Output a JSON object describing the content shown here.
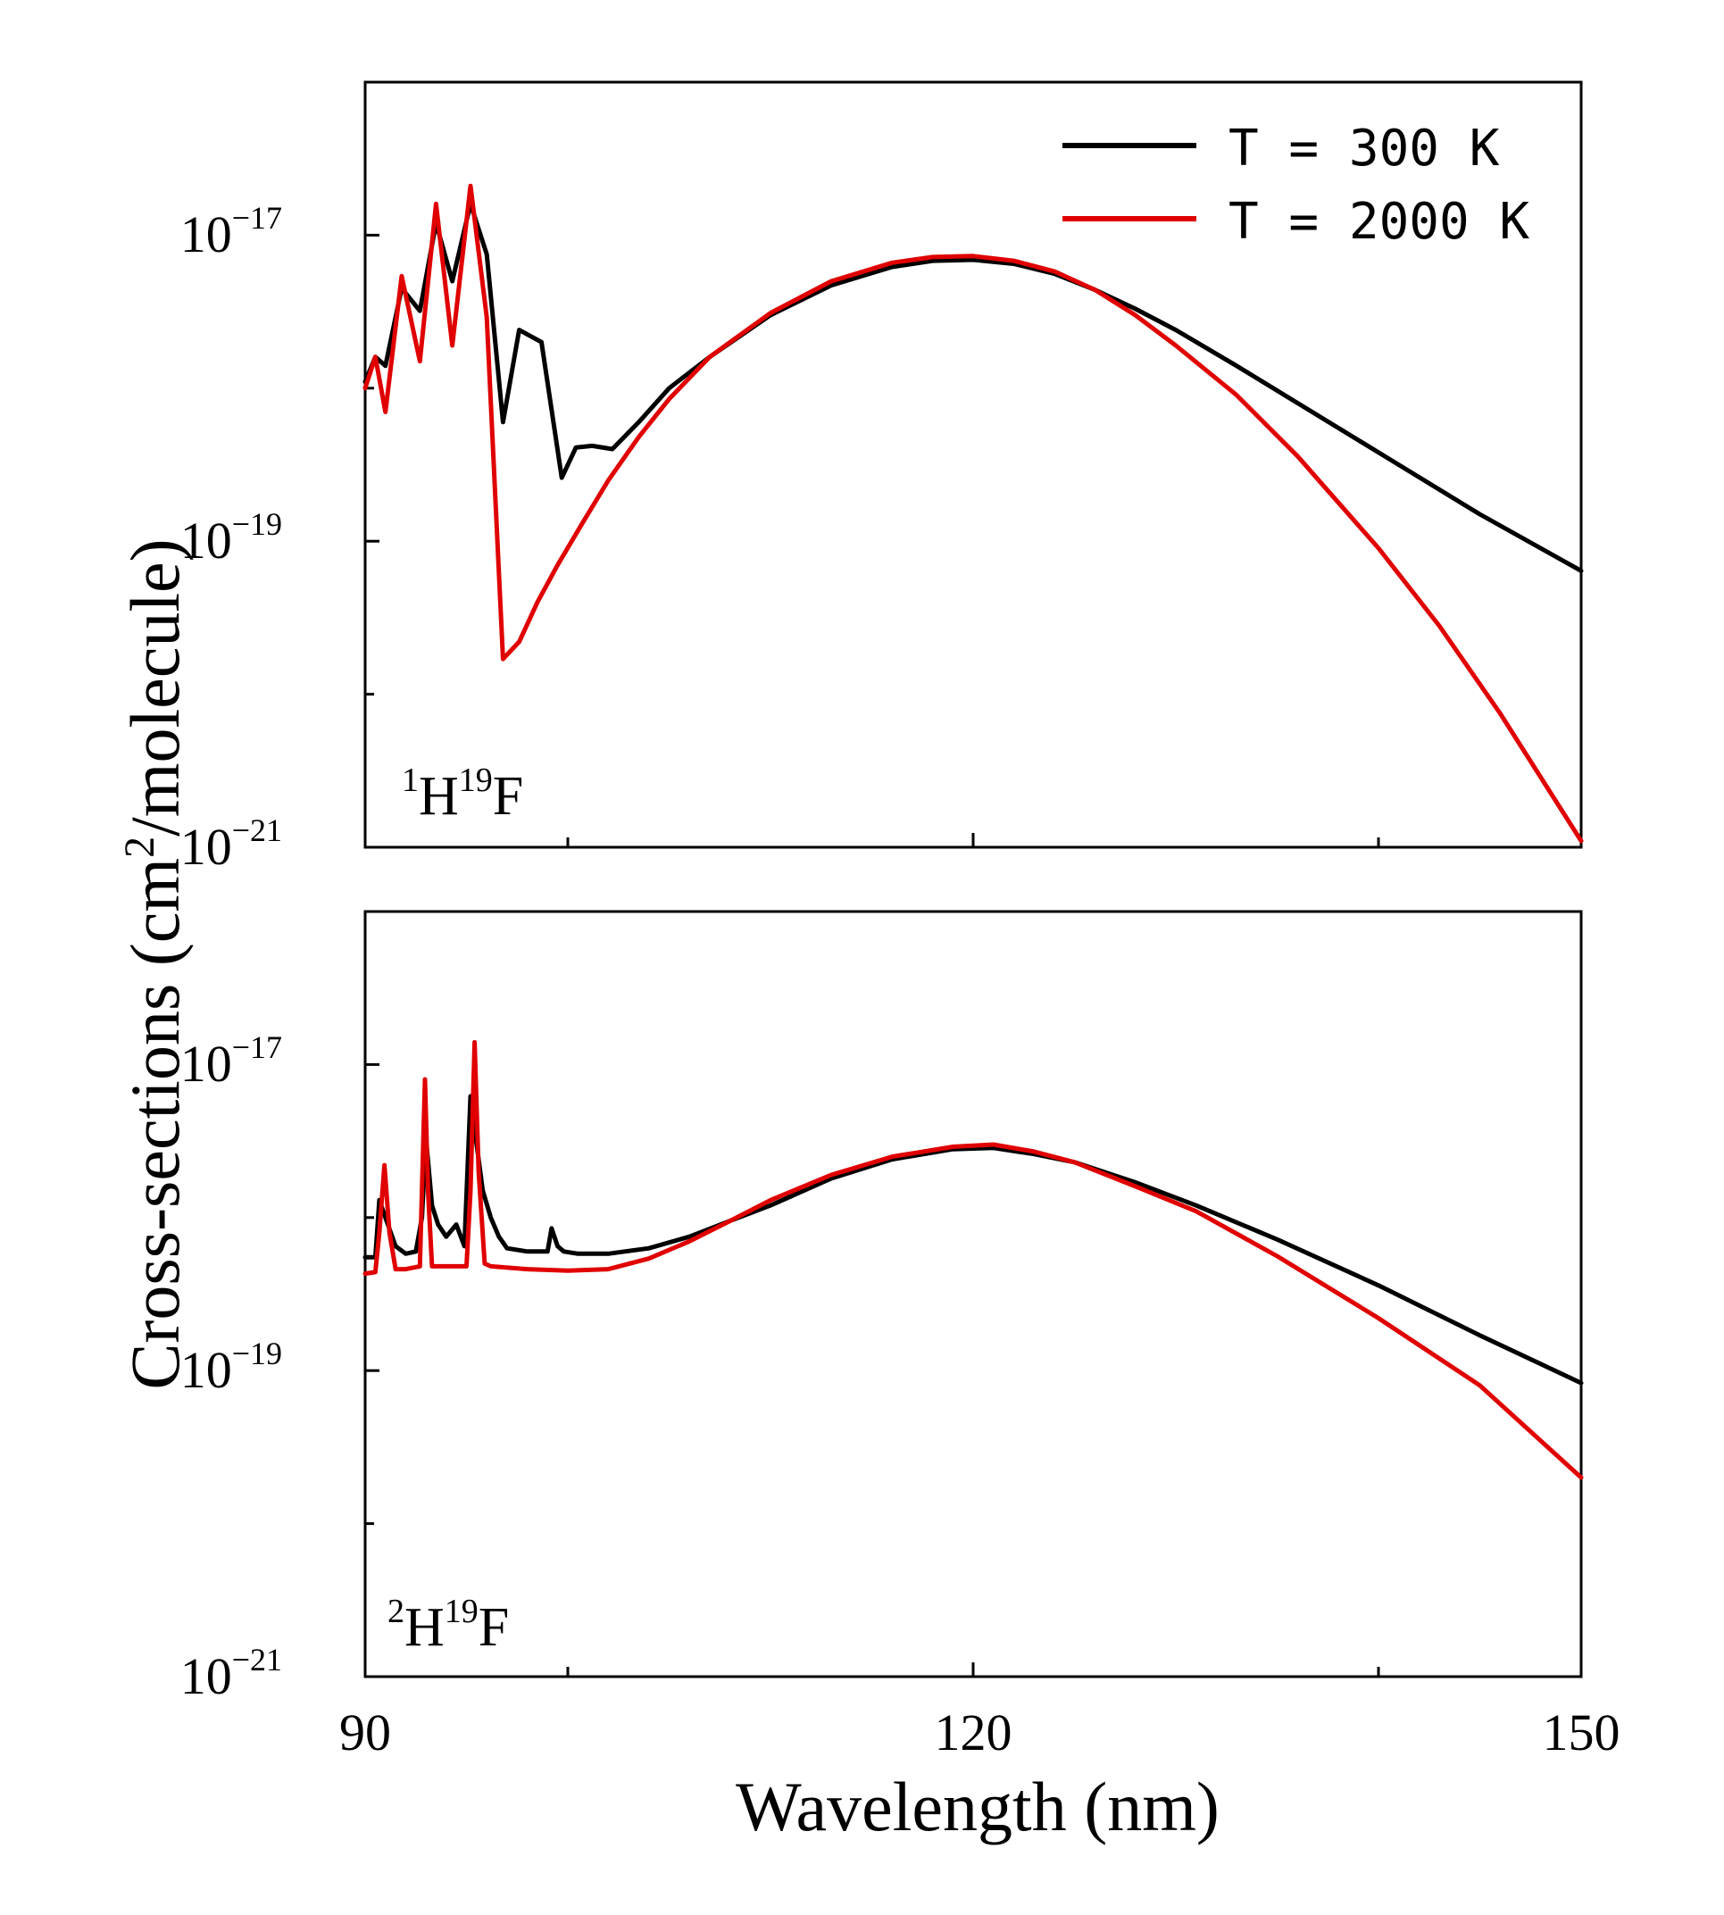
{
  "colors": {
    "series_300K": "#000000",
    "series_2000K": "#e00000",
    "axis": "#000000"
  },
  "chart_data": {
    "type": "line",
    "shared_ylabel": {
      "pre": "Cross-sections (cm",
      "sup": "2",
      "post": "/molecule)"
    },
    "xlabel": "Wavelength (nm)",
    "xlim": [
      90,
      150
    ],
    "xticks": [
      90,
      120,
      150
    ],
    "xtick_labels": [
      "90",
      "120",
      "150"
    ],
    "yscale": "log",
    "ylim": [
      1e-21,
      1e-16
    ],
    "ytick_labels": [
      {
        "base": "10",
        "exp": "−17",
        "value": 1e-17
      },
      {
        "base": "10",
        "exp": "−19",
        "value": 1e-19
      },
      {
        "base": "10",
        "exp": "−21",
        "value": 1e-21
      }
    ],
    "legend": {
      "placement": "top-right of upper panel",
      "entries": [
        "T = 300 K",
        "T = 2000 K"
      ]
    },
    "panels": [
      {
        "label": {
          "mass": "1",
          "h": "H",
          "fsup": "19",
          "f": "F"
        },
        "series": [
          {
            "name": "T = 300 K",
            "x": [
              90,
              90.5,
              91,
              91.8,
              92.7,
              93.5,
              94.3,
              95.2,
              96,
              96.8,
              97.6,
              98.7,
              99.7,
              100.4,
              101.2,
              102.2,
              103.5,
              105,
              107,
              110,
              113,
              116,
              118,
              120,
              122,
              124,
              126,
              128,
              130,
              133,
              136,
              140,
              145,
              150
            ],
            "y": [
              1.1e-18,
              1.6e-18,
              1.4e-18,
              4.5e-18,
              3.2e-18,
              1.2e-17,
              5e-18,
              1.6e-17,
              7.5e-18,
              6e-19,
              2.4e-18,
              2e-18,
              2.6e-19,
              4.1e-19,
              4.2e-19,
              4e-19,
              6e-19,
              1e-18,
              1.6e-18,
              3e-18,
              4.7e-18,
              6.2e-18,
              6.8e-18,
              6.9e-18,
              6.5e-18,
              5.6e-18,
              4.4e-18,
              3.3e-18,
              2.4e-18,
              1.4e-18,
              8e-19,
              3.8e-19,
              1.5e-19,
              6.4e-20
            ]
          },
          {
            "name": "T = 2000 K",
            "x": [
              90,
              90.5,
              91,
              91.8,
              92.7,
              93.5,
              94.3,
              95.2,
              96,
              96.8,
              97.6,
              98.5,
              99.5,
              100.7,
              102,
              103.5,
              105,
              107,
              110,
              113,
              116,
              118,
              120,
              122,
              124,
              126,
              128,
              130,
              133,
              136,
              140,
              143,
              146,
              150
            ],
            "y": [
              1e-18,
              1.6e-18,
              7e-19,
              5.4e-18,
              1.5e-18,
              1.6e-17,
              1.9e-18,
              2.1e-17,
              2.9e-18,
              1.7e-20,
              2.2e-20,
              4e-20,
              7e-20,
              1.3e-19,
              2.5e-19,
              4.8e-19,
              8.5e-19,
              1.6e-18,
              3.1e-18,
              5e-18,
              6.6e-18,
              7.2e-18,
              7.3e-18,
              6.8e-18,
              5.8e-18,
              4.4e-18,
              3e-18,
              1.9e-18,
              9e-19,
              3.6e-19,
              9e-20,
              2.8e-20,
              7.5e-21,
              1.1e-21
            ]
          }
        ]
      },
      {
        "label": {
          "mass": "2",
          "h": "H",
          "fsup": "19",
          "f": "F"
        },
        "series": [
          {
            "name": "T = 300 K",
            "x": [
              90,
              90.5,
              90.7,
              91,
              91.5,
              92,
              92.5,
              92.8,
              93,
              93.3,
              93.6,
              94,
              94.5,
              94.9,
              95.2,
              95.5,
              95.8,
              96.2,
              96.6,
              97,
              98,
              99,
              99.2,
              99.5,
              99.8,
              100.5,
              102,
              104,
              106,
              108,
              110,
              113,
              116,
              119,
              121,
              123,
              125,
              128,
              131,
              135,
              140,
              145,
              150
            ],
            "y": [
              5.5e-19,
              5.5e-19,
              1.3e-18,
              1e-18,
              6.5e-19,
              5.8e-19,
              6e-19,
              1e-18,
              3.3e-18,
              1.2e-18,
              9e-19,
              7.5e-19,
              9e-19,
              6.5e-19,
              6.2e-18,
              3e-18,
              1.5e-18,
              1e-18,
              7.5e-19,
              6.3e-19,
              6e-19,
              6e-19,
              8.5e-19,
              6.5e-19,
              6e-19,
              5.8e-19,
              5.8e-19,
              6.3e-19,
              7.5e-19,
              9.5e-19,
              1.2e-18,
              1.8e-18,
              2.4e-18,
              2.8e-18,
              2.85e-18,
              2.6e-18,
              2.3e-18,
              1.7e-18,
              1.2e-18,
              7.2e-19,
              3.6e-19,
              1.7e-19,
              8.3e-20
            ]
          },
          {
            "name": "T = 2000 K",
            "x": [
              90,
              90.5,
              90.7,
              90.95,
              91.2,
              91.5,
              92,
              92.7,
              92.8,
              92.95,
              93.1,
              93.3,
              94,
              95,
              95.2,
              95.4,
              95.6,
              95.9,
              96.2,
              98,
              100,
              102,
              104,
              106,
              108,
              110,
              113,
              116,
              119,
              121,
              123,
              125,
              128,
              131,
              135,
              140,
              145,
              150
            ],
            "y": [
              4.3e-19,
              4.4e-19,
              8e-19,
              2.2e-18,
              8e-19,
              4.6e-19,
              4.6e-19,
              4.8e-19,
              1.5e-18,
              8e-18,
              1.5e-18,
              4.8e-19,
              4.8e-19,
              4.8e-19,
              1.5e-18,
              1.4e-17,
              2e-18,
              5e-19,
              4.8e-19,
              4.6e-19,
              4.5e-19,
              4.6e-19,
              5.4e-19,
              7e-19,
              9.5e-19,
              1.3e-18,
              1.9e-18,
              2.5e-18,
              2.9e-18,
              3e-18,
              2.7e-18,
              2.3e-18,
              1.6e-18,
              1.1e-18,
              5.6e-19,
              2.2e-19,
              8e-20,
              2e-20
            ]
          }
        ]
      }
    ]
  }
}
